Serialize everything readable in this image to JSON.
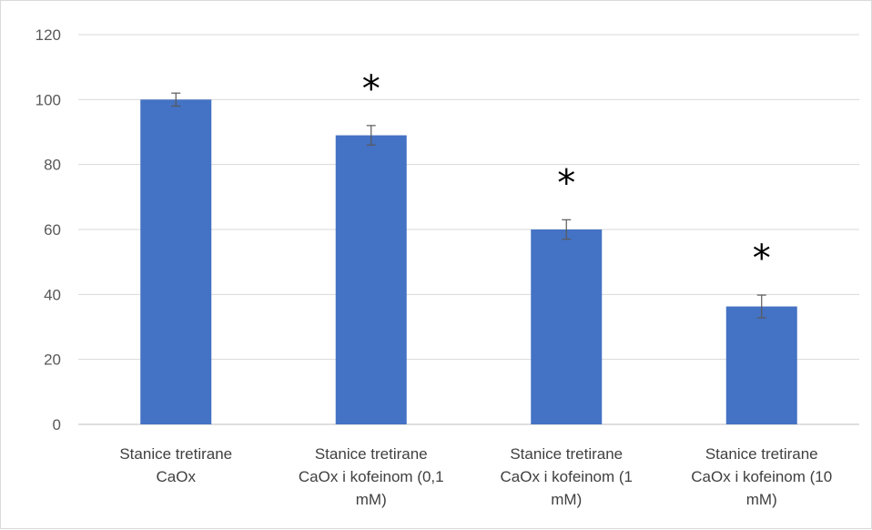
{
  "chart_data": {
    "type": "bar",
    "title": "",
    "xlabel": "",
    "ylabel": "",
    "ylim": [
      0,
      120
    ],
    "yticks": [
      0,
      20,
      40,
      60,
      80,
      100,
      120
    ],
    "grid": true,
    "legend": "none",
    "bar_color": "#4472c4",
    "categories": [
      [
        "Stanice tretirane",
        "CaOx"
      ],
      [
        "Stanice tretirane",
        "CaOx i kofeinom (0,1",
        "mM)"
      ],
      [
        "Stanice tretirane",
        "CaOx i kofeinom (1",
        "mM)"
      ],
      [
        "Stanice tretirane",
        "CaOx i kofeinom (10",
        "mM)"
      ]
    ],
    "values": [
      100,
      89,
      60,
      36.3
    ],
    "errors": [
      2,
      3,
      3,
      3.5
    ],
    "significance": [
      "",
      "*",
      "*",
      "*"
    ]
  }
}
